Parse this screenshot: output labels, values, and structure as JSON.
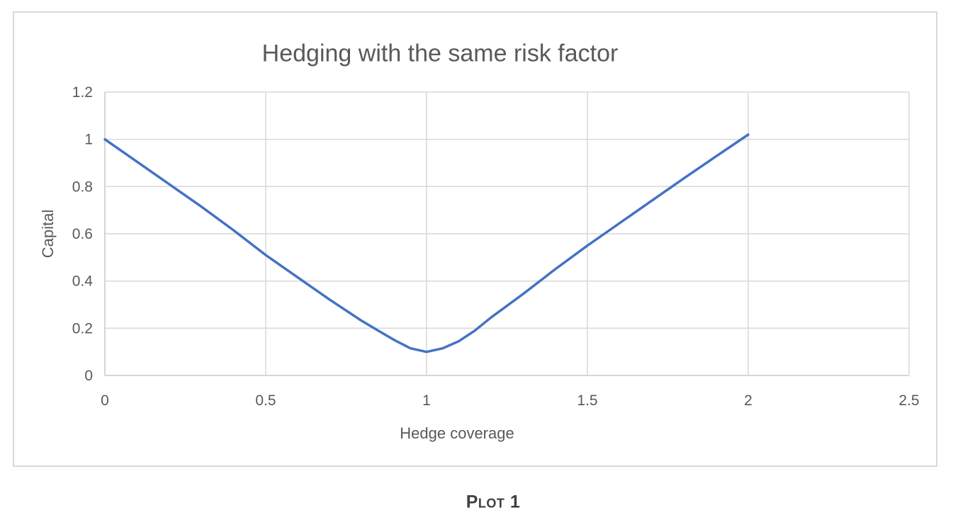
{
  "caption": {
    "text": "Plot 1"
  },
  "chart_data": {
    "type": "line",
    "title": "Hedging with the same risk factor",
    "xlabel": "Hedge coverage",
    "ylabel": "Capital",
    "xlim": [
      0,
      2.5
    ],
    "ylim": [
      0,
      1.2
    ],
    "xticks": [
      0,
      0.5,
      1,
      1.5,
      2,
      2.5
    ],
    "yticks": [
      0,
      0.2,
      0.4,
      0.6,
      0.8,
      1,
      1.2
    ],
    "xtick_labels": [
      "0",
      "0.5",
      "1",
      "1.5",
      "2",
      "2.5"
    ],
    "ytick_labels": [
      "0",
      "0.2",
      "0.4",
      "0.6",
      "0.8",
      "1",
      "1.2"
    ],
    "grid": true,
    "legend": "none",
    "series": [
      {
        "name": "Capital",
        "color": "#4472C4",
        "smooth": true,
        "points": [
          [
            0,
            1.0
          ],
          [
            0.1,
            0.905
          ],
          [
            0.2,
            0.81
          ],
          [
            0.3,
            0.715
          ],
          [
            0.4,
            0.615
          ],
          [
            0.5,
            0.51
          ],
          [
            0.6,
            0.415
          ],
          [
            0.7,
            0.32
          ],
          [
            0.8,
            0.23
          ],
          [
            0.85,
            0.19
          ],
          [
            0.9,
            0.15
          ],
          [
            0.95,
            0.115
          ],
          [
            1.0,
            0.1
          ],
          [
            1.05,
            0.115
          ],
          [
            1.1,
            0.145
          ],
          [
            1.15,
            0.19
          ],
          [
            1.2,
            0.245
          ],
          [
            1.3,
            0.345
          ],
          [
            1.4,
            0.45
          ],
          [
            1.5,
            0.55
          ],
          [
            1.6,
            0.645
          ],
          [
            1.7,
            0.74
          ],
          [
            1.8,
            0.835
          ],
          [
            1.9,
            0.928
          ],
          [
            2.0,
            1.02
          ]
        ]
      }
    ],
    "colors": {
      "line": "#4472C4",
      "gridline": "#D9D9D9",
      "axis_line": "#C8C8C8",
      "text": "#595959",
      "caption_text": "#3F3F3F",
      "frame_border": "#D9D9D9"
    }
  }
}
